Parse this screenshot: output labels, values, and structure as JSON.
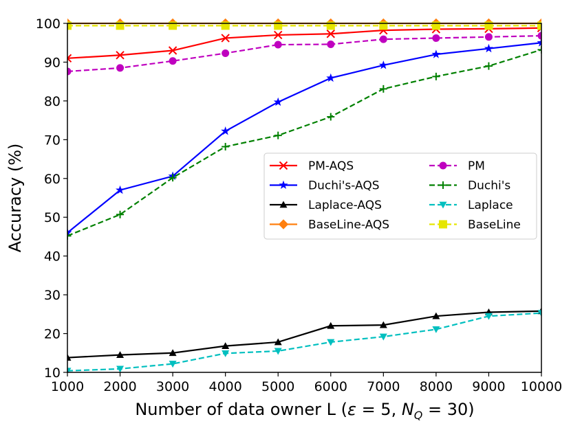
{
  "chart_data": {
    "type": "line",
    "xlabel": "Number of data owner L (ε = 5, N_Q = 30)",
    "xlabel_parts": {
      "prefix": "Number of data owner L (",
      "epsilon": "ε",
      "mid1": " = 5, ",
      "n": "N",
      "n_sub": "Q",
      "mid2": " = 30)"
    },
    "ylabel": "Accuracy (%)",
    "x": [
      1000,
      2000,
      3000,
      4000,
      5000,
      6000,
      7000,
      8000,
      9000,
      10000
    ],
    "xlim": [
      1000,
      10000
    ],
    "ylim": [
      10,
      100
    ],
    "xticks": [
      "1000",
      "2000",
      "3000",
      "4000",
      "5000",
      "6000",
      "7000",
      "8000",
      "9000",
      "10000"
    ],
    "yticks": [
      "10",
      "20",
      "30",
      "40",
      "50",
      "60",
      "70",
      "80",
      "90",
      "100"
    ],
    "grid": false,
    "legend_position": "center-right",
    "series": [
      {
        "name": "PM-AQS",
        "color": "#ff0000",
        "dash": "solid",
        "marker": "x",
        "values": [
          91.0,
          91.8,
          93.0,
          96.2,
          97.0,
          97.3,
          98.2,
          98.5,
          98.6,
          98.8
        ]
      },
      {
        "name": "PM",
        "color": "#bf00bf",
        "dash": "dashed",
        "marker": "circle",
        "values": [
          87.6,
          88.5,
          90.3,
          92.3,
          94.5,
          94.6,
          95.9,
          96.2,
          96.5,
          96.8
        ]
      },
      {
        "name": "Duchi's-AQS",
        "color": "#0000ff",
        "dash": "solid",
        "marker": "star",
        "values": [
          46.0,
          57.0,
          60.6,
          72.2,
          79.7,
          85.9,
          89.2,
          92.0,
          93.5,
          95.0
        ]
      },
      {
        "name": "Duchi's",
        "color": "#008000",
        "dash": "dashed",
        "marker": "plus",
        "values": [
          45.2,
          50.7,
          60.2,
          68.2,
          71.1,
          75.9,
          83.1,
          86.3,
          89.0,
          93.2
        ]
      },
      {
        "name": "Laplace-AQS",
        "color": "#000000",
        "dash": "solid",
        "marker": "triangle-up",
        "values": [
          13.8,
          14.5,
          15.0,
          16.8,
          17.8,
          22.0,
          22.2,
          24.5,
          25.5,
          25.8
        ]
      },
      {
        "name": "Laplace",
        "color": "#00bfbf",
        "dash": "dashed",
        "marker": "triangle-down",
        "values": [
          10.4,
          10.9,
          12.2,
          14.9,
          15.5,
          17.8,
          19.2,
          21.1,
          24.5,
          25.3
        ]
      },
      {
        "name": "BaseLine-AQS",
        "color": "#ff7f0e",
        "dash": "solid",
        "marker": "diamond",
        "values": [
          100,
          100,
          100,
          100,
          100,
          100,
          100,
          100,
          100,
          100
        ]
      },
      {
        "name": "BaseLine",
        "color": "#e6e600",
        "dash": "dashed",
        "marker": "square",
        "values": [
          99.4,
          99.4,
          99.4,
          99.4,
          99.4,
          99.4,
          99.4,
          99.4,
          99.4,
          99.4
        ]
      }
    ]
  }
}
